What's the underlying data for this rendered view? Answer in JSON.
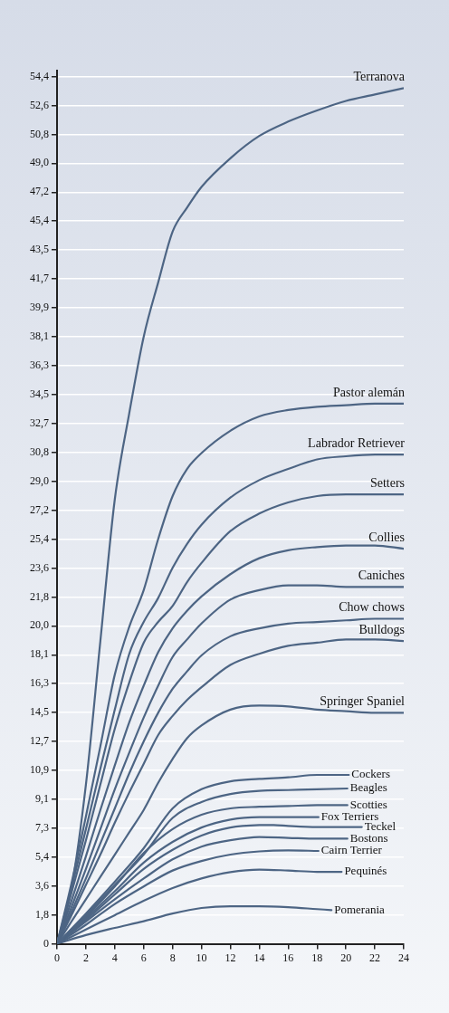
{
  "chart_data": {
    "type": "line",
    "xlim": [
      0,
      24
    ],
    "xticks": [
      0,
      2,
      4,
      6,
      8,
      10,
      12,
      14,
      16,
      18,
      20,
      22,
      24
    ],
    "ylim": [
      0,
      54.8
    ],
    "yticks": [
      0,
      {
        "value": 1.81,
        "label": "1,8"
      },
      {
        "value": 3.63,
        "label": "3,6"
      },
      {
        "value": 5.44,
        "label": "5,4"
      },
      {
        "value": 7.26,
        "label": "7,3"
      },
      {
        "value": 9.07,
        "label": "9,1"
      },
      {
        "value": 10.89,
        "label": "10,9"
      },
      {
        "value": 12.7,
        "label": "12,7"
      },
      {
        "value": 14.51,
        "label": "14,5"
      },
      {
        "value": 16.33,
        "label": "16,3"
      },
      {
        "value": 18.14,
        "label": "18,1"
      },
      {
        "value": 19.96,
        "label": "20,0"
      },
      {
        "value": 21.77,
        "label": "21,8"
      },
      {
        "value": 23.59,
        "label": "23,6"
      },
      {
        "value": 25.4,
        "label": "25,4"
      },
      {
        "value": 27.22,
        "label": "27,2"
      },
      {
        "value": 29.03,
        "label": "29,0"
      },
      {
        "value": 30.84,
        "label": "30,8"
      },
      {
        "value": 32.66,
        "label": "32,7"
      },
      {
        "value": 34.47,
        "label": "34,5"
      },
      {
        "value": 36.29,
        "label": "36,3"
      },
      {
        "value": 38.1,
        "label": "38,1"
      },
      {
        "value": 39.92,
        "label": "39,9"
      },
      {
        "value": 41.73,
        "label": "41,7"
      },
      {
        "value": 43.55,
        "label": "43,5"
      },
      {
        "value": 45.36,
        "label": "45,4"
      },
      {
        "value": 47.17,
        "label": "47,2"
      },
      {
        "value": 48.99,
        "label": "49,0"
      },
      {
        "value": 50.8,
        "label": "50,8"
      },
      {
        "value": 52.62,
        "label": "52,6"
      },
      {
        "value": 54.43,
        "label": "54,4"
      }
    ],
    "grid": "y",
    "legend": false,
    "marker": "none",
    "line_style": "solid",
    "series": [
      {
        "name": "Terranova",
        "color": "#4d6584",
        "x": [
          0,
          1,
          2,
          3,
          4,
          5,
          6,
          7,
          8,
          9,
          10,
          12,
          14,
          16,
          18,
          20,
          22,
          24
        ],
        "values": [
          0,
          3.5,
          10,
          19,
          27.9,
          33.3,
          38.1,
          41.5,
          44.7,
          46.2,
          47.5,
          49.3,
          50.7,
          51.6,
          52.3,
          52.9,
          53.3,
          53.7
        ]
      },
      {
        "name": "Pastor alemán",
        "color": "#4d6584",
        "x": [
          0,
          1,
          2,
          3,
          4,
          5,
          6,
          7,
          8,
          9,
          10,
          12,
          14,
          16,
          18,
          20,
          22,
          24
        ],
        "values": [
          0,
          3.8,
          8,
          12.4,
          16.9,
          19.9,
          22.2,
          25.4,
          28.1,
          29.8,
          30.8,
          32.2,
          33.1,
          33.5,
          33.7,
          33.8,
          33.9,
          33.9
        ]
      },
      {
        "name": "Labrador Retriever",
        "color": "#4d6584",
        "x": [
          0,
          1,
          2,
          3,
          4,
          5,
          6,
          7,
          8,
          9,
          10,
          12,
          14,
          16,
          18,
          20,
          22,
          24
        ],
        "values": [
          0,
          3.5,
          7.2,
          11,
          14.7,
          18.2,
          20.2,
          21.7,
          23.6,
          25.1,
          26.3,
          28,
          29.1,
          29.8,
          30.4,
          30.6,
          30.7,
          30.7
        ]
      },
      {
        "name": "Setters",
        "color": "#4d6584",
        "x": [
          0,
          1,
          2,
          3,
          4,
          5,
          6,
          7,
          8,
          9,
          10,
          12,
          14,
          16,
          18,
          20,
          22,
          24
        ],
        "values": [
          0,
          3.2,
          6.5,
          10,
          13.5,
          16.4,
          18.9,
          20.2,
          21.2,
          22.7,
          23.9,
          25.9,
          27,
          27.7,
          28.1,
          28.2,
          28.2,
          28.2
        ]
      },
      {
        "name": "Collies",
        "color": "#4d6584",
        "x": [
          0,
          1,
          2,
          3,
          4,
          5,
          6,
          7,
          8,
          9,
          10,
          12,
          14,
          16,
          18,
          20,
          22,
          24
        ],
        "values": [
          0,
          2.7,
          5.5,
          8.4,
          11.2,
          13.9,
          16.2,
          18.3,
          19.8,
          20.9,
          21.8,
          23.2,
          24.2,
          24.7,
          24.9,
          25,
          25,
          24.8
        ]
      },
      {
        "name": "Caniches",
        "color": "#4d6584",
        "x": [
          0,
          1,
          2,
          3,
          4,
          5,
          6,
          7,
          8,
          9,
          10,
          12,
          14,
          16,
          18,
          20,
          22,
          24
        ],
        "values": [
          0,
          2.3,
          4.7,
          7.2,
          9.7,
          12,
          14.2,
          16.2,
          18,
          19.1,
          20.1,
          21.6,
          22.2,
          22.5,
          22.5,
          22.4,
          22.4,
          22.4
        ]
      },
      {
        "name": "Chow chows",
        "color": "#4d6584",
        "x": [
          0,
          1,
          2,
          3,
          4,
          5,
          6,
          7,
          8,
          9,
          10,
          12,
          14,
          16,
          18,
          20,
          22,
          24
        ],
        "values": [
          0,
          2,
          4.1,
          6.3,
          8.5,
          10.7,
          12.7,
          14.5,
          16,
          17.1,
          18.1,
          19.3,
          19.8,
          20.1,
          20.2,
          20.3,
          20.4,
          20.4
        ]
      },
      {
        "name": "Bulldogs",
        "color": "#4d6584",
        "x": [
          0,
          1,
          2,
          3,
          4,
          5,
          6,
          7,
          8,
          9,
          10,
          12,
          14,
          16,
          18,
          20,
          22,
          24
        ],
        "values": [
          0,
          1.8,
          3.7,
          5.6,
          7.6,
          9.5,
          11.3,
          13.1,
          14.3,
          15.3,
          16.1,
          17.5,
          18.2,
          18.7,
          18.9,
          19.1,
          19.1,
          19
        ]
      },
      {
        "name": "Springer Spaniel",
        "color": "#4d6584",
        "x": [
          0,
          1,
          2,
          3,
          4,
          5,
          6,
          7,
          8,
          9,
          10,
          12,
          14,
          16,
          18,
          20,
          22,
          24
        ],
        "values": [
          0,
          1.4,
          2.8,
          4.2,
          5.6,
          7,
          8.4,
          10.1,
          11.6,
          12.9,
          13.7,
          14.7,
          14.95,
          14.9,
          14.7,
          14.6,
          14.5,
          14.5
        ]
      },
      {
        "name": "Cockers",
        "color": "#4d6584",
        "x": [
          0,
          2,
          4,
          6,
          8,
          10,
          12,
          14,
          16,
          18,
          20.2
        ],
        "values": [
          0,
          1.9,
          3.9,
          6,
          8.5,
          9.7,
          10.2,
          10.35,
          10.45,
          10.6,
          10.6
        ]
      },
      {
        "name": "Beagles",
        "color": "#4d6584",
        "x": [
          0,
          2,
          4,
          6,
          8,
          10,
          12,
          14,
          16,
          18,
          20.1
        ],
        "values": [
          0,
          1.8,
          3.7,
          5.6,
          7.9,
          8.9,
          9.4,
          9.6,
          9.65,
          9.7,
          9.75
        ]
      },
      {
        "name": "Scotties",
        "color": "#4d6584",
        "x": [
          0,
          2,
          4,
          6,
          8,
          10,
          12,
          14,
          16,
          18,
          20.1
        ],
        "values": [
          0,
          1.7,
          3.6,
          5.7,
          7.2,
          8.1,
          8.5,
          8.6,
          8.65,
          8.7,
          8.7
        ]
      },
      {
        "name": "Fox Terriers",
        "color": "#4d6584",
        "x": [
          0,
          2,
          4,
          6,
          8,
          10,
          12,
          14,
          16,
          18.1
        ],
        "values": [
          0,
          1.6,
          3.3,
          5.1,
          6.4,
          7.3,
          7.8,
          7.95,
          7.95,
          7.95
        ]
      },
      {
        "name": "Teckel",
        "color": "#4d6584",
        "x": [
          0,
          2,
          4,
          6,
          8,
          10,
          12,
          14,
          15,
          16,
          18,
          21.1
        ],
        "values": [
          0,
          1.5,
          3.1,
          4.7,
          5.9,
          6.8,
          7.3,
          7.45,
          7.46,
          7.4,
          7.33,
          7.33
        ]
      },
      {
        "name": "Bostons",
        "color": "#4d6584",
        "x": [
          0,
          2,
          4,
          6,
          8,
          10,
          12,
          14,
          16,
          18,
          20.1
        ],
        "values": [
          0,
          1.4,
          2.8,
          4.1,
          5.3,
          6.1,
          6.5,
          6.7,
          6.65,
          6.6,
          6.6
        ]
      },
      {
        "name": "Cairn Terrier",
        "color": "#4d6584",
        "x": [
          0,
          2,
          4,
          6,
          8,
          10,
          12,
          14,
          16,
          18.1
        ],
        "values": [
          0,
          1.2,
          2.5,
          3.6,
          4.6,
          5.2,
          5.6,
          5.8,
          5.86,
          5.83
        ]
      },
      {
        "name": "Pequinés",
        "color": "#4d6584",
        "x": [
          0,
          2,
          4,
          6,
          8,
          10,
          12,
          14,
          16,
          18,
          19.7
        ],
        "values": [
          0,
          0.9,
          1.8,
          2.7,
          3.5,
          4.1,
          4.5,
          4.66,
          4.6,
          4.52,
          4.52
        ]
      },
      {
        "name": "Pomerania",
        "color": "#4d6584",
        "x": [
          0,
          2,
          4,
          6,
          8,
          10,
          12,
          14,
          16,
          18,
          19
        ],
        "values": [
          0,
          0.55,
          1,
          1.42,
          1.9,
          2.25,
          2.36,
          2.36,
          2.3,
          2.18,
          2.12
        ]
      }
    ]
  }
}
